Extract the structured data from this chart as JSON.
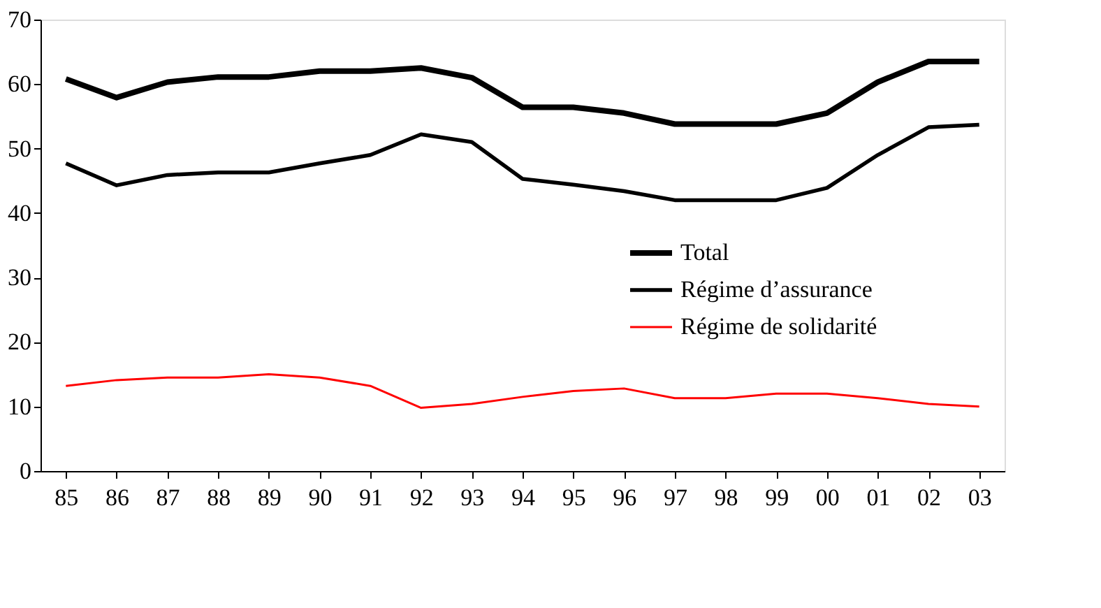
{
  "chart_data": {
    "type": "line",
    "categories": [
      "85",
      "86",
      "87",
      "88",
      "89",
      "90",
      "91",
      "92",
      "93",
      "94",
      "95",
      "96",
      "97",
      "98",
      "99",
      "00",
      "01",
      "02",
      "03"
    ],
    "series": [
      {
        "name": "Total",
        "color": "#000000",
        "values": [
          60.8,
          57.9,
          60.3,
          61.1,
          61.1,
          62,
          62,
          62.5,
          61,
          56.4,
          56.4,
          55.5,
          53.8,
          53.8,
          53.8,
          55.5,
          60.3,
          63.5,
          63.5
        ]
      },
      {
        "name": "Régime d’assurance",
        "color": "#000000",
        "values": [
          47.7,
          44.3,
          45.9,
          46.3,
          46.3,
          47.7,
          49,
          52.2,
          51,
          45.3,
          44.4,
          43.4,
          42,
          42,
          42,
          43.9,
          49,
          53.3,
          53.7
        ]
      },
      {
        "name": "Régime de solidarité",
        "color": "#ff0000",
        "values": [
          13.2,
          14.1,
          14.5,
          14.5,
          15,
          14.5,
          13.2,
          9.8,
          10.4,
          11.5,
          12.4,
          12.8,
          11.3,
          11.3,
          12,
          12,
          11.3,
          10.4,
          10
        ]
      }
    ],
    "ylim": [
      0,
      70
    ],
    "yticks": [
      0,
      10,
      20,
      30,
      40,
      50,
      60,
      70
    ],
    "grid": false,
    "legend": "right",
    "marker": "none",
    "line_style": "solid"
  }
}
